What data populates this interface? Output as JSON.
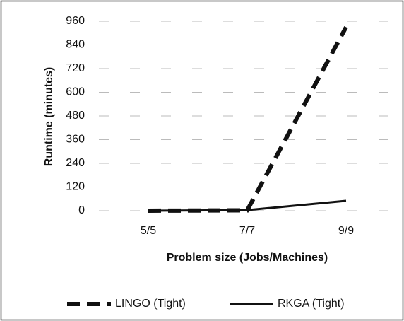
{
  "chart_data": {
    "type": "line",
    "x_label": "Problem size (Jobs/Machines)",
    "y_label": "Runtime (minutes)",
    "categories": [
      "5/5",
      "7/7",
      "9/9"
    ],
    "series": [
      {
        "name": "LINGO (Tight)",
        "color": "#111111",
        "dashed": true,
        "values": [
          0,
          2,
          930
        ]
      },
      {
        "name": "RKGA (Tight)",
        "color": "#111111",
        "dashed": false,
        "values": [
          0,
          3,
          50
        ]
      }
    ],
    "ylim": [
      0,
      960
    ],
    "yticks": [
      0,
      120,
      240,
      360,
      480,
      600,
      720,
      840,
      960
    ],
    "grid": true,
    "legend": "bottom"
  }
}
